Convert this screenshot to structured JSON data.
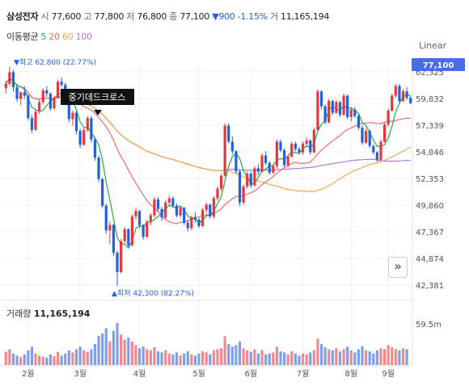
{
  "header": {
    "name": "삼성전자",
    "open_label": "시",
    "open": "77,600",
    "high_label": "고",
    "high": "77,800",
    "low_label": "저",
    "low": "76,800",
    "close_label": "종",
    "close": "77,100",
    "change": "▼900 -1.15%",
    "volume_label": "거",
    "volume": "11,165,194"
  },
  "moving_average": {
    "label": "이동평균",
    "periods": [
      {
        "text": "5",
        "color": "#27a844"
      },
      {
        "text": "20",
        "color": "#ec6c73"
      },
      {
        "text": "60",
        "color": "#f0a84b"
      },
      {
        "text": "100",
        "color": "#a87ae0"
      }
    ]
  },
  "scale_label": "Linear",
  "annotations": {
    "max": "▼최고 62,800 (22.77%)",
    "min": "▲최저 42,300 (82.27%)",
    "callout": "중기데드크로스"
  },
  "current_price_tag": "77,100",
  "volume_title": {
    "label": "거래량",
    "value": "11,165,194"
  },
  "colors": {
    "up": "#e4383d",
    "down": "#2461d9",
    "tag": "#4a6ce6"
  },
  "chart_data": {
    "type": "candlestick",
    "y_ticks": [
      "62,325",
      "59,832",
      "57,339",
      "54,846",
      "52,353",
      "49,860",
      "47,367",
      "44,874",
      "42,381"
    ],
    "ylim": [
      42381,
      62325
    ],
    "x_ticks": [
      "2월",
      "3월",
      "4월",
      "5월",
      "6월",
      "7월",
      "8월",
      "9월"
    ],
    "volume_axis_label": "59.5m",
    "candles": [
      [
        60800,
        61500,
        60300,
        61200
      ],
      [
        61200,
        62800,
        61000,
        62300
      ],
      [
        62300,
        62500,
        60500,
        60900
      ],
      [
        60900,
        61200,
        59500,
        59800
      ],
      [
        59800,
        60500,
        59200,
        60400
      ],
      [
        60400,
        61000,
        59800,
        60100
      ],
      [
        60100,
        60200,
        57800,
        58000
      ],
      [
        58000,
        58300,
        56600,
        56900
      ],
      [
        56900,
        58800,
        56800,
        58600
      ],
      [
        58600,
        59700,
        58400,
        59500
      ],
      [
        59500,
        60800,
        59300,
        60600
      ],
      [
        60600,
        61000,
        60000,
        60300
      ],
      [
        60300,
        60400,
        58700,
        58900
      ],
      [
        58900,
        60100,
        58800,
        59900
      ],
      [
        59900,
        61600,
        59800,
        61400
      ],
      [
        61400,
        61800,
        60900,
        61100
      ],
      [
        61100,
        61300,
        59400,
        59600
      ],
      [
        59600,
        59700,
        57600,
        57900
      ],
      [
        57900,
        58700,
        57300,
        58500
      ],
      [
        58500,
        58700,
        56500,
        56800
      ],
      [
        56800,
        57000,
        55200,
        55500
      ],
      [
        55500,
        57100,
        55400,
        56900
      ],
      [
        56900,
        58200,
        56700,
        58000
      ],
      [
        58000,
        58200,
        55700,
        56000
      ],
      [
        56000,
        56200,
        54000,
        54300
      ],
      [
        54300,
        54500,
        52000,
        52300
      ],
      [
        52300,
        52400,
        49600,
        49800
      ],
      [
        49800,
        50000,
        47200,
        47500
      ],
      [
        47500,
        48300,
        46200,
        48000
      ],
      [
        48000,
        48100,
        45100,
        45400
      ],
      [
        45400,
        45600,
        42300,
        43600
      ],
      [
        43600,
        46700,
        43500,
        46500
      ],
      [
        46500,
        47800,
        46300,
        47600
      ],
      [
        47600,
        47700,
        45800,
        46100
      ],
      [
        46100,
        49000,
        46000,
        48800
      ],
      [
        48800,
        49600,
        48500,
        49300
      ],
      [
        49300,
        49400,
        47700,
        48000
      ],
      [
        48000,
        48100,
        46600,
        46900
      ],
      [
        46900,
        48500,
        46800,
        48300
      ],
      [
        48300,
        49100,
        48000,
        48900
      ],
      [
        48900,
        50600,
        48700,
        50400
      ],
      [
        50400,
        50600,
        49200,
        49500
      ],
      [
        49500,
        49700,
        48400,
        48700
      ],
      [
        48700,
        50300,
        48600,
        50100
      ],
      [
        50100,
        50800,
        49800,
        50500
      ],
      [
        50500,
        50700,
        49600,
        49800
      ],
      [
        49800,
        50000,
        48700,
        48900
      ],
      [
        48900,
        49800,
        48700,
        49600
      ],
      [
        49600,
        49700,
        48000,
        48200
      ],
      [
        48200,
        48500,
        47400,
        47700
      ],
      [
        47700,
        48900,
        47500,
        48700
      ],
      [
        48700,
        49200,
        48200,
        48500
      ],
      [
        48500,
        48700,
        47700,
        47900
      ],
      [
        47900,
        49600,
        47800,
        49400
      ],
      [
        49400,
        50100,
        49100,
        49900
      ],
      [
        49900,
        50000,
        48600,
        48800
      ],
      [
        48800,
        50700,
        48600,
        50500
      ],
      [
        50500,
        51600,
        50300,
        51400
      ],
      [
        51400,
        52800,
        51200,
        52600
      ],
      [
        52600,
        57500,
        52500,
        57300
      ],
      [
        57300,
        57500,
        55600,
        55800
      ],
      [
        55800,
        56300,
        54600,
        54900
      ],
      [
        54900,
        55000,
        52800,
        53000
      ],
      [
        53000,
        53200,
        49800,
        50100
      ],
      [
        50100,
        51800,
        49900,
        51600
      ],
      [
        51600,
        53000,
        51400,
        52800
      ],
      [
        52800,
        53000,
        51500,
        51700
      ],
      [
        51700,
        53500,
        51600,
        53300
      ],
      [
        53300,
        53700,
        52700,
        53000
      ],
      [
        53000,
        54700,
        52900,
        54500
      ],
      [
        54500,
        54900,
        53600,
        53800
      ],
      [
        53800,
        54000,
        52700,
        52900
      ],
      [
        52900,
        53700,
        52800,
        53500
      ],
      [
        53500,
        56000,
        53300,
        55800
      ],
      [
        55800,
        56000,
        54800,
        55000
      ],
      [
        55000,
        55200,
        53400,
        53600
      ],
      [
        53600,
        54600,
        53400,
        54400
      ],
      [
        54400,
        55800,
        54300,
        55600
      ],
      [
        55600,
        55800,
        54900,
        55100
      ],
      [
        55100,
        55300,
        54600,
        54800
      ],
      [
        54800,
        55800,
        54600,
        55600
      ],
      [
        55600,
        56200,
        55300,
        55900
      ],
      [
        55900,
        56000,
        54600,
        54800
      ],
      [
        54800,
        57100,
        54700,
        56900
      ],
      [
        56900,
        60700,
        56800,
        60500
      ],
      [
        60500,
        60600,
        58800,
        59100
      ],
      [
        59100,
        59300,
        57400,
        57600
      ],
      [
        57600,
        59800,
        57500,
        59600
      ],
      [
        59600,
        59700,
        58300,
        58500
      ],
      [
        58500,
        59700,
        58400,
        59500
      ],
      [
        59500,
        59600,
        58100,
        58300
      ],
      [
        58300,
        60300,
        58200,
        60100
      ],
      [
        60100,
        60200,
        57900,
        58100
      ],
      [
        58100,
        59000,
        57700,
        58800
      ],
      [
        58800,
        59000,
        58000,
        58200
      ],
      [
        58200,
        58400,
        56900,
        57100
      ],
      [
        57100,
        57300,
        55500,
        55700
      ],
      [
        55700,
        57000,
        55600,
        56800
      ],
      [
        56800,
        56900,
        55200,
        55400
      ],
      [
        55400,
        55500,
        54600,
        54800
      ],
      [
        54800,
        54900,
        53900,
        54100
      ],
      [
        54100,
        56000,
        54000,
        55800
      ],
      [
        55800,
        57600,
        55700,
        57400
      ],
      [
        57400,
        58900,
        57200,
        58700
      ],
      [
        58700,
        60300,
        58600,
        60100
      ],
      [
        60100,
        61200,
        59900,
        61000
      ],
      [
        61000,
        61200,
        59400,
        59600
      ],
      [
        59600,
        60700,
        59500,
        60500
      ],
      [
        60500,
        60900,
        59700,
        59900
      ],
      [
        59900,
        60100,
        59300,
        59400
      ]
    ],
    "volumes": [
      25,
      30,
      22,
      18,
      15,
      20,
      28,
      35,
      22,
      18,
      16,
      14,
      20,
      17,
      25,
      18,
      22,
      28,
      24,
      30,
      35,
      28,
      25,
      30,
      40,
      55,
      60,
      70,
      45,
      65,
      80,
      58,
      48,
      52,
      45,
      38,
      32,
      35,
      30,
      28,
      34,
      26,
      24,
      28,
      22,
      20,
      24,
      18,
      22,
      26,
      20,
      18,
      22,
      26,
      24,
      20,
      28,
      30,
      32,
      55,
      40,
      35,
      38,
      45,
      32,
      28,
      25,
      30,
      22,
      28,
      20,
      22,
      24,
      35,
      26,
      24,
      20,
      26,
      22,
      18,
      22,
      20,
      24,
      28,
      50,
      40,
      34,
      30,
      28,
      32,
      26,
      30,
      35,
      28,
      24,
      30,
      36,
      28,
      26,
      22,
      28,
      32,
      30,
      38,
      34,
      30,
      28,
      32,
      30
    ]
  }
}
